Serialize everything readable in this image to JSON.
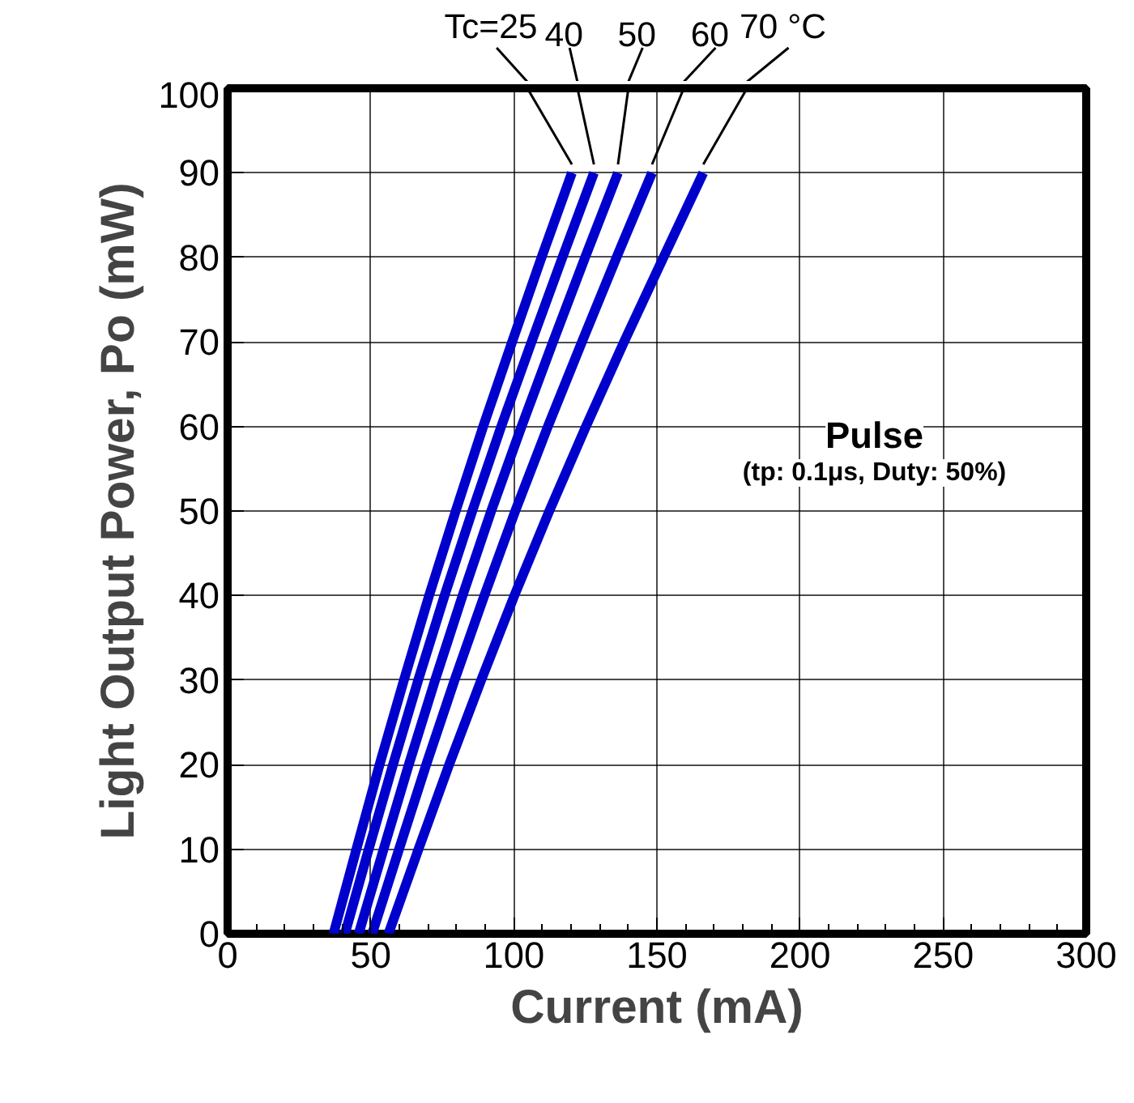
{
  "chart_data": {
    "type": "line",
    "xlabel": "Current (mA)",
    "ylabel": "Light Output Power, Po (mW)",
    "xlim": [
      0,
      300
    ],
    "xticks": [
      0,
      50,
      100,
      150,
      200,
      250,
      300
    ],
    "ylim": [
      0,
      100
    ],
    "yticks": [
      0,
      10,
      20,
      30,
      40,
      50,
      60,
      70,
      80,
      90,
      100
    ],
    "grid": true,
    "legend": false,
    "marker": "none",
    "line_style": "solid",
    "series": [
      {
        "name": "Tc=25",
        "color": "#0000cc",
        "x": [
          37,
          45.0,
          53.1,
          61.6,
          70.4,
          79.7,
          89.3,
          99.4,
          109.7,
          120.3
        ],
        "values": [
          0,
          10,
          20,
          30,
          40,
          50,
          60,
          70,
          80,
          90
        ]
      },
      {
        "name": "40",
        "color": "#0000cc",
        "x": [
          41,
          49.3,
          57.8,
          66.6,
          75.8,
          85.5,
          95.6,
          106.2,
          117.0,
          128
        ],
        "values": [
          0,
          10,
          20,
          30,
          40,
          50,
          60,
          70,
          80,
          90
        ]
      },
      {
        "name": "50",
        "color": "#0000cc",
        "x": [
          45.8,
          54.5,
          63.3,
          72.5,
          82.1,
          92.1,
          102.7,
          113.7,
          124.9,
          136.4
        ],
        "values": [
          0,
          10,
          20,
          30,
          40,
          50,
          60,
          70,
          80,
          90
        ]
      },
      {
        "name": "60",
        "color": "#0000cc",
        "x": [
          50.5,
          59.9,
          69.4,
          79.3,
          89.7,
          100.5,
          111.9,
          123.8,
          135.9,
          148.3
        ],
        "values": [
          0,
          10,
          20,
          30,
          40,
          50,
          60,
          70,
          80,
          90
        ]
      },
      {
        "name": "70 °C",
        "color": "#0000cc",
        "x": [
          56.2,
          66.7,
          77.4,
          88.6,
          100.2,
          112.4,
          125.2,
          138.5,
          152.3,
          166.2
        ],
        "values": [
          0,
          10,
          20,
          30,
          40,
          50,
          60,
          70,
          80,
          90
        ]
      }
    ],
    "annotations": [
      "Pulse",
      "(tp: 0.1μs, Duty: 50%)"
    ]
  }
}
